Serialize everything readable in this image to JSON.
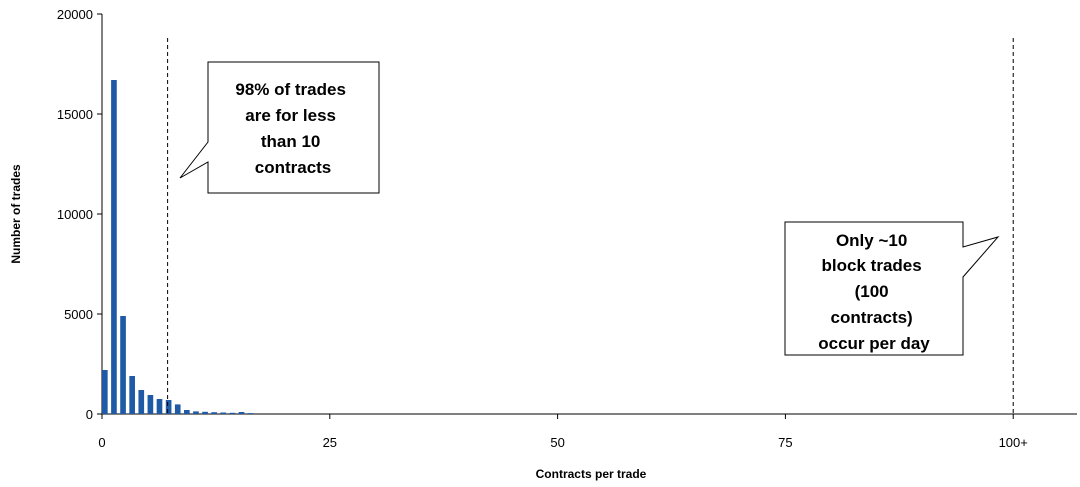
{
  "chart_data": {
    "type": "bar",
    "title": "",
    "xlabel": "Contracts per trade",
    "ylabel": "Number of trades",
    "xlim": [
      0,
      107
    ],
    "ylim": [
      0,
      20000
    ],
    "x_ticks": [
      {
        "value": 0,
        "label": "0"
      },
      {
        "value": 25,
        "label": "25"
      },
      {
        "value": 50,
        "label": "50"
      },
      {
        "value": 75,
        "label": "75"
      },
      {
        "value": 100,
        "label": "100+"
      }
    ],
    "y_ticks": [
      0,
      5000,
      10000,
      15000,
      20000
    ],
    "bar_color": "#1f5aa6",
    "grid": false,
    "x": [
      0,
      1,
      2,
      3,
      4,
      5,
      6,
      7,
      8,
      9,
      10,
      11,
      12,
      13,
      14,
      15,
      16
    ],
    "values": [
      2200,
      16700,
      4900,
      1900,
      1200,
      950,
      750,
      700,
      480,
      200,
      130,
      110,
      90,
      75,
      60,
      100,
      45
    ],
    "reference_lines": [
      {
        "x": 7.2,
        "style": "dashed"
      },
      {
        "x": 100,
        "style": "dashed"
      }
    ],
    "annotations": [
      {
        "id": "callout-1",
        "lines": [
          "98% of trades",
          "are for less",
          "than 10",
          "contracts"
        ]
      },
      {
        "id": "callout-2",
        "lines": [
          "Only ~10",
          "block trades",
          "(100",
          "contracts)",
          "occur per day"
        ]
      }
    ]
  }
}
